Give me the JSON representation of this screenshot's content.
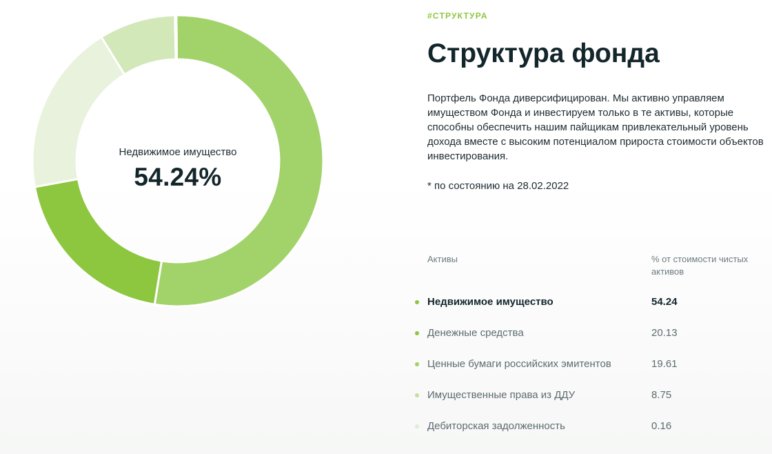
{
  "section_tag": "#СТРУКТУРА",
  "title": "Структура фонда",
  "description": "Портфель Фонда диверсифицирован. Мы активно управляем имуществом Фонда и инвестируем только в те активы, которые способны обеспечить нашим пайщикам привлекательный уровень дохода вместе с высоким потенциалом прироста стоимости объектов инвестирования.",
  "note": "* по состоянию на 28.02.2022",
  "table": {
    "col_assets": "Активы",
    "col_percent": "% от стоимости чистых активов"
  },
  "center": {
    "label": "Недвижимое имущество",
    "value": "54.24%"
  },
  "chart_data": {
    "type": "pie",
    "variant": "donut",
    "active_index": 0,
    "categories": [
      "Недвижимое имущество",
      "Денежные средства",
      "Ценные бумаги российских эмитентов",
      "Имущественные права из ДДУ",
      "Дебиторская задолженность"
    ],
    "values": [
      54.24,
      20.13,
      19.61,
      8.75,
      0.16
    ],
    "value_labels": [
      "54.24",
      "20.13",
      "19.61",
      "8.75",
      "0.16"
    ],
    "colors": [
      "#a2d26a",
      "#8dc63f",
      "#e8f2dc",
      "#d3e8b9",
      "#e6efde"
    ]
  }
}
